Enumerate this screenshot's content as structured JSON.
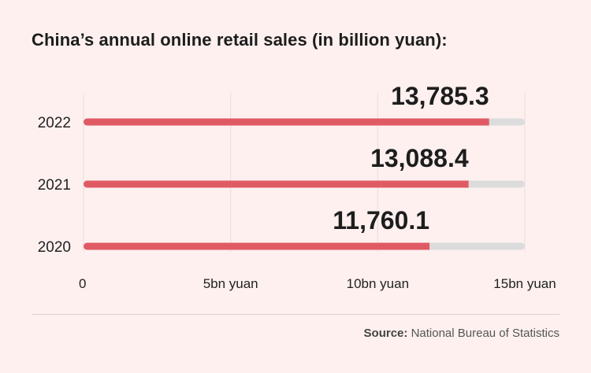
{
  "title": "China’s annual online retail sales (in billion yuan):",
  "source": {
    "label": "Source:",
    "text": "National Bureau of Statistics"
  },
  "colors": {
    "bar": "#e05a63",
    "track": "#dcdcdc",
    "grid": "#eadcdb",
    "background": "#fdf0ef"
  },
  "chart_data": {
    "type": "bar",
    "orientation": "horizontal",
    "categories": [
      "2022",
      "2021",
      "2020"
    ],
    "values": [
      13785.3,
      13088.4,
      11760.1
    ],
    "value_labels": [
      "13,785.3",
      "13,088.4",
      "11,760.1"
    ],
    "xlim": [
      0,
      15000
    ],
    "xticks": [
      0,
      5000,
      10000,
      15000
    ],
    "xtick_labels": [
      "0",
      "5bn yuan",
      "10bn yuan",
      "15bn yuan"
    ],
    "grid": true
  }
}
